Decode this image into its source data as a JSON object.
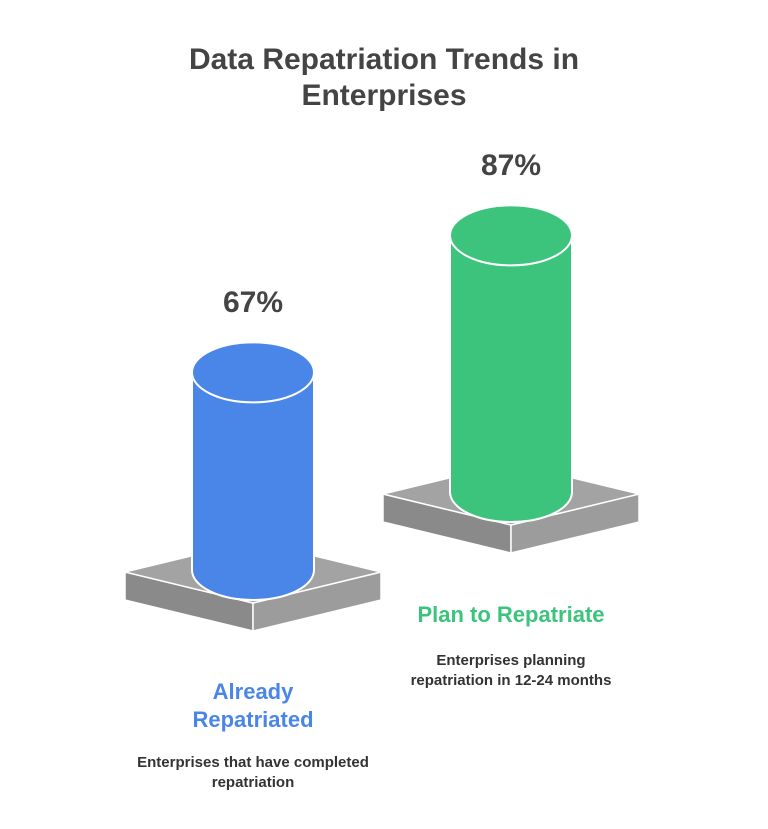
{
  "chart_data": {
    "type": "cylinder",
    "title": "Data Repatriation Trends in Enterprises",
    "categories": [
      "Already Repatriated",
      "Plan to Repatriate"
    ],
    "descriptions": [
      "Enterprises that have completed repatriation",
      "Enterprises planning repatriation in 12-24 months"
    ],
    "values": [
      67,
      87
    ],
    "value_labels": [
      "67%",
      "87%"
    ],
    "colors": [
      "#4a86e8",
      "#3cc47c"
    ]
  }
}
